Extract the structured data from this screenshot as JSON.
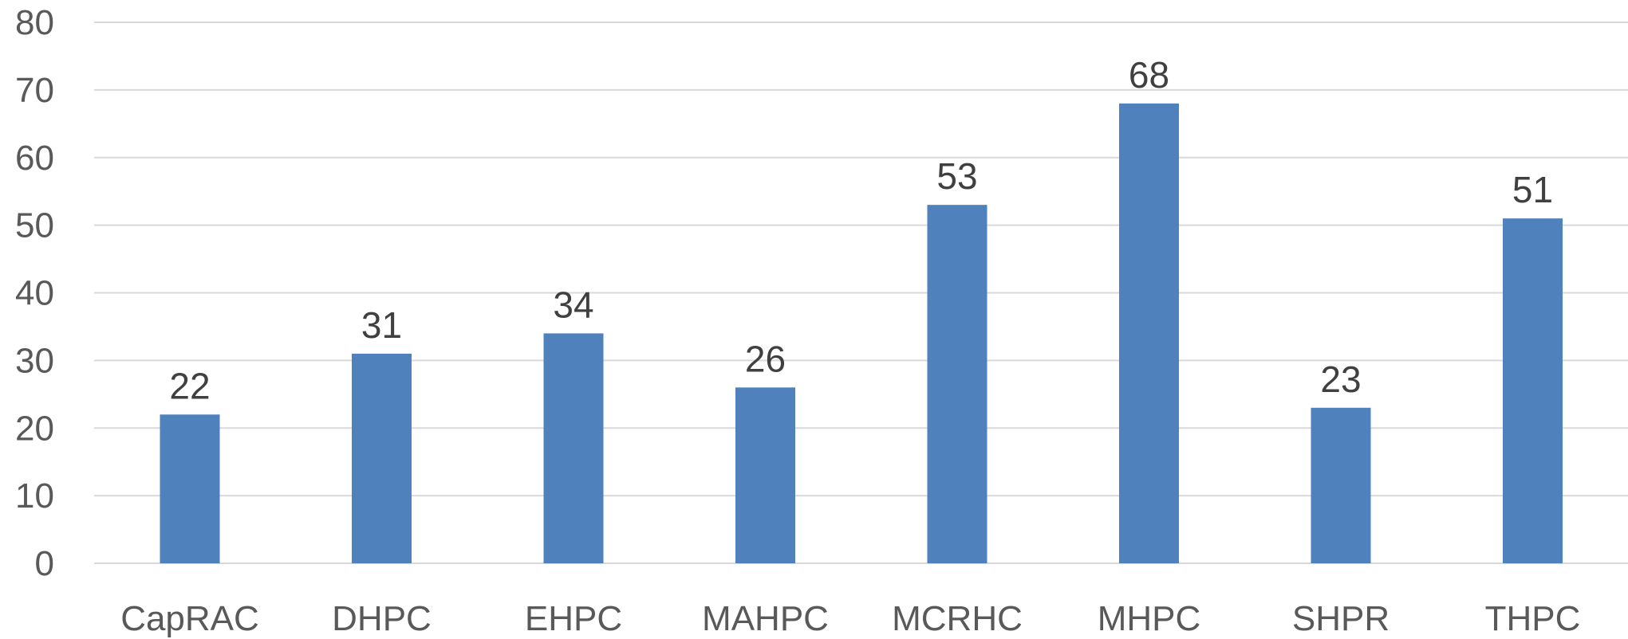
{
  "chart_data": {
    "type": "bar",
    "categories": [
      "CapRAC",
      "DHPC",
      "EHPC",
      "MAHPC",
      "MCRHC",
      "MHPC",
      "SHPR",
      "THPC"
    ],
    "values": [
      22,
      31,
      34,
      26,
      53,
      68,
      23,
      51
    ],
    "title": "",
    "xlabel": "",
    "ylabel": "",
    "ylim": [
      0,
      80
    ],
    "yticks": [
      0,
      10,
      20,
      30,
      40,
      50,
      60,
      70,
      80
    ],
    "grid": true,
    "legend": "none",
    "data_labels": true,
    "colors": {
      "bar": "#4f81bd",
      "grid": "#d9d9d9",
      "tick_text": "#595959",
      "label_text": "#404040"
    }
  }
}
